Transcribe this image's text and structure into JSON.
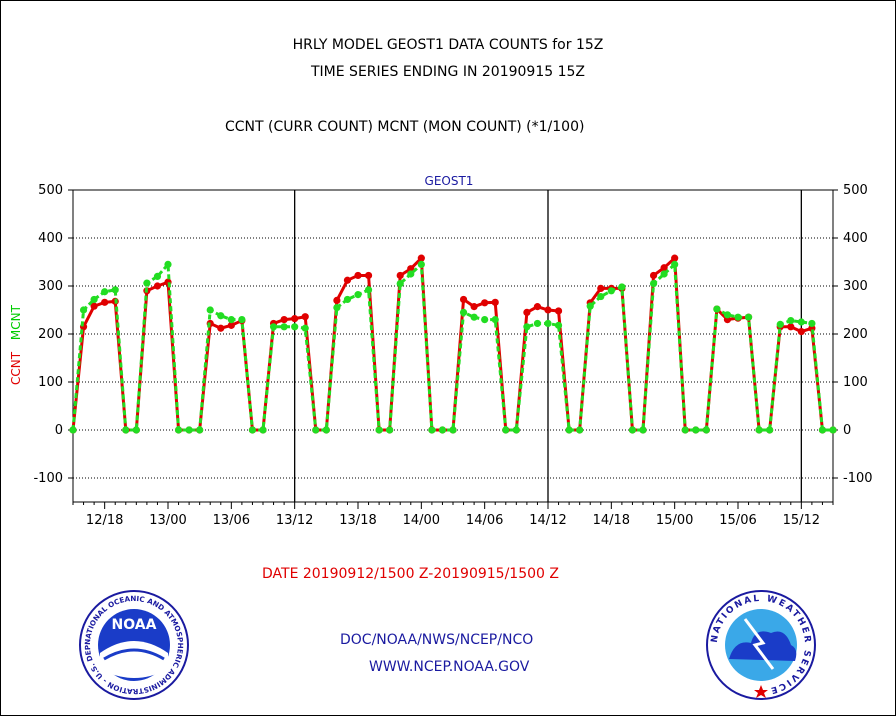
{
  "header": {
    "title_line1": "HRLY MODEL GEOST1 DATA COUNTS for 15Z",
    "title_line2": "TIME SERIES ENDING IN 20190915 15Z",
    "subtitle": "CCNT (CURR COUNT) MCNT (MON COUNT) (*1/100)"
  },
  "footer": {
    "date_range": "DATE 20190912/1500 Z-20190915/1500 Z",
    "org": "DOC/NOAA/NWS/NCEP/NCO",
    "url": "WWW.NCEP.NOAA.GOV"
  },
  "logos": {
    "left": {
      "name": "noaa-logo",
      "text": "NOAA",
      "ring_text": "NATIONAL OCEANIC AND ATMOSPHERIC ADMINISTRATION - U.S. DEPARTMENT OF COMMERCE"
    },
    "right": {
      "name": "national-weather-service-logo",
      "ring_text": "NATIONAL WEATHER SERVICE"
    }
  },
  "chart_data": {
    "type": "line",
    "title": "GEOST1",
    "ylabel_parts": [
      {
        "text": "CCNT",
        "color": "#e00000"
      },
      {
        "text": "MCNT",
        "color": "#00cc00"
      }
    ],
    "ylim": [
      -150,
      500
    ],
    "y_ticks": [
      -100,
      0,
      100,
      200,
      300,
      400,
      500
    ],
    "xlim": [
      0,
      72
    ],
    "x_tick_positions": [
      3,
      9,
      15,
      21,
      27,
      33,
      39,
      45,
      51,
      57,
      63,
      69
    ],
    "x_tick_labels": [
      "12/18",
      "13/00",
      "13/06",
      "13/12",
      "13/18",
      "14/00",
      "14/06",
      "14/12",
      "14/18",
      "15/00",
      "15/06",
      "15/12"
    ],
    "day_boundaries": [
      21,
      45,
      69
    ],
    "grid": true,
    "series": [
      {
        "name": "CCNT",
        "color": "#e00000",
        "values": [
          0,
          215,
          258,
          266,
          268,
          0,
          0,
          290,
          300,
          308,
          0,
          0,
          0,
          222,
          212,
          218,
          228,
          0,
          0,
          222,
          230,
          232,
          236,
          0,
          0,
          270,
          312,
          322,
          322,
          0,
          0,
          322,
          336,
          358,
          0,
          0,
          0,
          272,
          257,
          265,
          266,
          0,
          0,
          245,
          257,
          250,
          248,
          0,
          0,
          265,
          295,
          295,
          295,
          0,
          0,
          322,
          338,
          358,
          0,
          0,
          0,
          252,
          230,
          233,
          235,
          0,
          0,
          215,
          215,
          205,
          212,
          0,
          0
        ]
      },
      {
        "name": "MCNT",
        "color": "#22dd22",
        "values": [
          0,
          250,
          272,
          288,
          292,
          0,
          0,
          306,
          320,
          345,
          0,
          0,
          0,
          250,
          238,
          230,
          230,
          0,
          0,
          215,
          215,
          215,
          212,
          0,
          0,
          255,
          272,
          282,
          292,
          0,
          0,
          305,
          325,
          345,
          0,
          0,
          0,
          245,
          235,
          230,
          230,
          0,
          0,
          215,
          222,
          222,
          218,
          0,
          0,
          258,
          278,
          290,
          298,
          0,
          0,
          305,
          325,
          345,
          0,
          0,
          0,
          252,
          240,
          235,
          235,
          0,
          0,
          220,
          228,
          225,
          222,
          0,
          0
        ]
      }
    ]
  }
}
